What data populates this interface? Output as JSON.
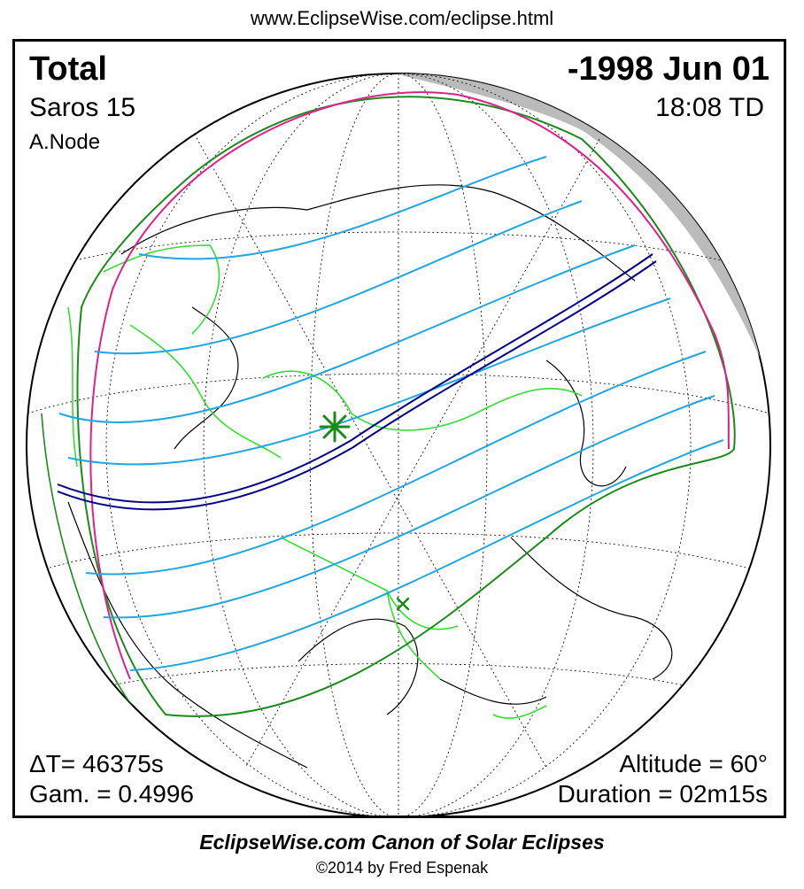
{
  "header": {
    "url": "www.EclipseWise.com/eclipse.html"
  },
  "eclipse": {
    "type": "Total",
    "date": "-1998 Jun 01",
    "saros": "Saros  15",
    "time": "18:08 TD",
    "node": "A.Node",
    "delta_t": "ΔT=  46375s",
    "gamma": "Gam. = 0.4996",
    "altitude": "Altitude = 60°",
    "duration": "Duration = 02m15s"
  },
  "colors": {
    "path_of_totality": "#00008b",
    "penumbral_limit": "#1a8a1a",
    "rise_set_curve": "#e0208c",
    "partial_lines": "#1ea7e1",
    "borders": "#33dd33",
    "night_shadow": "#bbbbbb"
  },
  "map": {
    "greatest_eclipse_marker": "green-star-icon",
    "greatest_duration_marker": "green-x-icon"
  },
  "footer": {
    "title": "EclipseWise.com Canon of Solar Eclipses",
    "copyright": "©2014 by Fred Espenak"
  }
}
